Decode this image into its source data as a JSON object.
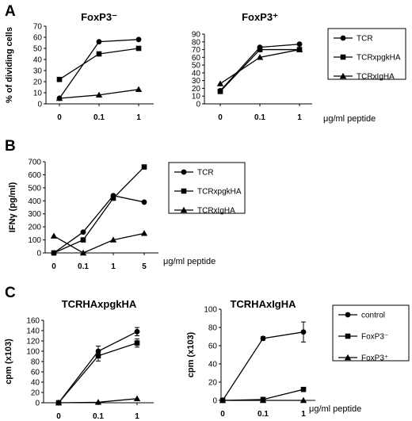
{
  "panels": [
    {
      "letter": "A",
      "label_pos": [
        6,
        20
      ]
    },
    {
      "letter": "B",
      "label_pos": [
        6,
        190
      ]
    },
    {
      "letter": "C",
      "label_pos": [
        6,
        375
      ]
    }
  ],
  "chart_data": [
    {
      "id": "A1",
      "type": "line",
      "title": "FoxP3⁻",
      "xlabel": "",
      "ylabel": "% of dividing cells",
      "categories": [
        "0",
        "0.1",
        "1"
      ],
      "ylim": [
        0,
        70
      ],
      "yticks": [
        0,
        10,
        20,
        30,
        40,
        50,
        60,
        70
      ],
      "series": [
        {
          "name": "TCR",
          "marker": "circle",
          "values": [
            5,
            56,
            58
          ]
        },
        {
          "name": "TCRxpgkHA",
          "marker": "square",
          "values": [
            22,
            45,
            50
          ]
        },
        {
          "name": "TCRxIgHA",
          "marker": "triangle",
          "values": [
            5,
            8,
            13
          ]
        }
      ]
    },
    {
      "id": "A2",
      "type": "line",
      "title": "FoxP3⁺",
      "xlabel": "μg/ml peptide",
      "ylabel": "",
      "categories": [
        "0",
        "0.1",
        "1"
      ],
      "ylim": [
        0,
        90
      ],
      "yticks": [
        0,
        10,
        20,
        30,
        40,
        50,
        60,
        70,
        80,
        90
      ],
      "series": [
        {
          "name": "TCR",
          "marker": "circle",
          "values": [
            17,
            73,
            77
          ]
        },
        {
          "name": "TCRxpgkHA",
          "marker": "square",
          "values": [
            16,
            70,
            70
          ]
        },
        {
          "name": "TCRxIgHA",
          "marker": "triangle",
          "values": [
            26,
            60,
            70
          ]
        }
      ],
      "legend": [
        "TCR",
        "TCRxpgkHA",
        "TCRxIgHA"
      ]
    },
    {
      "id": "B",
      "type": "line",
      "title": "",
      "xlabel": "μg/ml peptide",
      "ylabel": "IFNγ (pg/ml)",
      "categories": [
        "0",
        "0.1",
        "1",
        "5"
      ],
      "ylim": [
        0,
        700
      ],
      "yticks": [
        0,
        100,
        200,
        300,
        400,
        500,
        600,
        700
      ],
      "series": [
        {
          "name": "TCR",
          "marker": "circle",
          "values": [
            0,
            160,
            440,
            390
          ]
        },
        {
          "name": "TCRxpgkHA",
          "marker": "square",
          "values": [
            0,
            100,
            420,
            660
          ]
        },
        {
          "name": "TCRxIgHA",
          "marker": "triangle",
          "values": [
            130,
            0,
            100,
            150
          ]
        }
      ],
      "legend": [
        "TCR",
        "TCRxpgkHA",
        "TCRxIgHA"
      ]
    },
    {
      "id": "C1",
      "type": "line",
      "title": "TCRHAxpgkHA",
      "xlabel": "",
      "ylabel": "cpm (x103)",
      "categories": [
        "0",
        "0.1",
        "1"
      ],
      "ylim": [
        0,
        160
      ],
      "yticks": [
        0,
        20,
        40,
        60,
        80,
        100,
        120,
        140,
        160
      ],
      "series": [
        {
          "name": "control",
          "marker": "circle",
          "values": [
            0,
            100,
            138
          ],
          "err": [
            0,
            10,
            8
          ]
        },
        {
          "name": "FoxP3⁻",
          "marker": "square",
          "values": [
            0,
            91,
            116
          ],
          "err": [
            0,
            10,
            8
          ]
        },
        {
          "name": "FoxP3⁺",
          "marker": "triangle",
          "values": [
            0,
            1,
            8
          ],
          "err": [
            0,
            0,
            0
          ]
        }
      ]
    },
    {
      "id": "C2",
      "type": "line",
      "title": "TCRHAxIgHA",
      "xlabel": "μg/ml peptide",
      "ylabel": "cpm (x103)",
      "categories": [
        "0",
        "0.1",
        "1"
      ],
      "ylim": [
        0,
        100
      ],
      "yticks": [
        0,
        20,
        40,
        60,
        80,
        100
      ],
      "series": [
        {
          "name": "control",
          "marker": "circle",
          "values": [
            0,
            68,
            75
          ],
          "err": [
            0,
            2,
            11
          ]
        },
        {
          "name": "FoxP3⁻",
          "marker": "square",
          "values": [
            0,
            1,
            12
          ],
          "err": [
            0,
            0,
            0
          ]
        },
        {
          "name": "FoxP3⁺",
          "marker": "triangle",
          "values": [
            0,
            0,
            0
          ],
          "err": [
            0,
            0,
            0
          ]
        }
      ],
      "legend": [
        "control",
        "FoxP3⁻",
        "FoxP3⁺"
      ]
    }
  ]
}
